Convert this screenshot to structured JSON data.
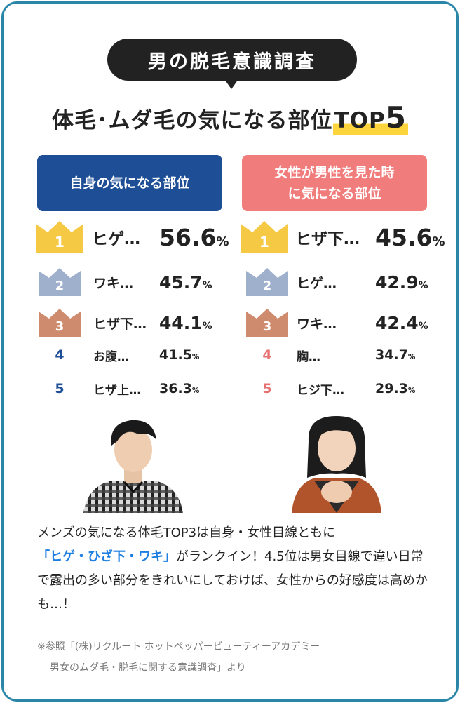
{
  "badge": "男の脱毛意識調査",
  "title": {
    "main": "体毛･ムダ毛の気になる部位",
    "top": "TOP",
    "five": "5"
  },
  "columns": [
    {
      "heading": "自身の気になる部位",
      "accent": "#1e4f96",
      "items": [
        {
          "rank": "1",
          "label": "ヒゲ…",
          "value": "56.6",
          "unit": "%"
        },
        {
          "rank": "2",
          "label": "ワキ…",
          "value": "45.7",
          "unit": "%"
        },
        {
          "rank": "3",
          "label": "ヒザ下…",
          "value": "44.1",
          "unit": "%"
        },
        {
          "rank": "4",
          "label": "お腹…",
          "value": "41.5",
          "unit": "%"
        },
        {
          "rank": "5",
          "label": "ヒザ上…",
          "value": "36.3",
          "unit": "%"
        }
      ]
    },
    {
      "heading": "女性が男性を見た時\nに気になる部位",
      "accent": "#f07c7c",
      "items": [
        {
          "rank": "1",
          "label": "ヒザ下…",
          "value": "45.6",
          "unit": "%"
        },
        {
          "rank": "2",
          "label": "ヒゲ…",
          "value": "42.9",
          "unit": "%"
        },
        {
          "rank": "3",
          "label": "ワキ…",
          "value": "42.4",
          "unit": "%"
        },
        {
          "rank": "4",
          "label": "胸…",
          "value": "34.7",
          "unit": "%"
        },
        {
          "rank": "5",
          "label": "ヒジ下…",
          "value": "29.3",
          "unit": "%"
        }
      ]
    }
  ],
  "crown_colors": {
    "gold": "#f6c945",
    "silver": "#9fb0cc",
    "bronze": "#cf8b6e"
  },
  "photos": {
    "left": "man-photo",
    "right": "woman-photo"
  },
  "body": {
    "line1": "メンズの気になる体毛TOP3は自身・女性目線ともに",
    "highlight": "「ヒゲ・ひざ下・ワキ」",
    "line2": "がランクイン！4.5位は男女目線で違い日常で露出の多い部分をきれいにしておけば、女性からの好感度は高めかも…！"
  },
  "note": {
    "line1": "※参照「(株)リクルート ホットペッパービューティーアカデミー",
    "line2": "男女のムダ毛・脱毛に関する意識調査」より"
  }
}
